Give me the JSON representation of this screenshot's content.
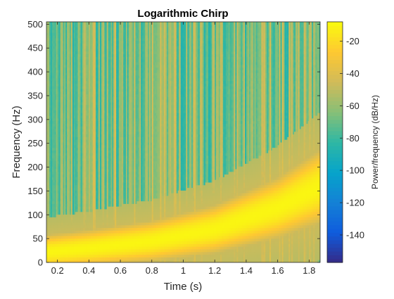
{
  "chart_data": {
    "type": "heatmap",
    "title": "Logarithmic Chirp",
    "xlabel": "Time (s)",
    "ylabel": "Frequency (Hz)",
    "xlim": [
      0.13,
      1.87
    ],
    "ylim": [
      0,
      505
    ],
    "x_ticks": [
      0.2,
      0.4,
      0.6,
      0.8,
      1,
      1.2,
      1.4,
      1.6,
      1.8
    ],
    "x_tick_labels": [
      "0.2",
      "0.4",
      "0.6",
      "0.8",
      "1",
      "1.2",
      "1.4",
      "1.6",
      "1.8"
    ],
    "y_ticks": [
      0,
      50,
      100,
      150,
      200,
      250,
      300,
      350,
      400,
      450,
      500
    ],
    "y_tick_labels": [
      "0",
      "50",
      "100",
      "150",
      "200",
      "250",
      "300",
      "350",
      "400",
      "450",
      "500"
    ],
    "colorbar": {
      "label": "Power/frequency (dB/Hz)",
      "range": [
        -157,
        -8
      ],
      "ticks": [
        -20,
        -40,
        -60,
        -80,
        -100,
        -120,
        -140
      ],
      "tick_labels": [
        "-20",
        "-40",
        "-60",
        "-80",
        "-100",
        "-120",
        "-140"
      ],
      "colormap": "parula",
      "colors": [
        "#352a87",
        "#0f5cdd",
        "#1481d6",
        "#06a4ca",
        "#2eb7a4",
        "#87bf77",
        "#d1bb59",
        "#fec832",
        "#f9fb0e"
      ]
    },
    "chirp_ridge": {
      "time": [
        0.13,
        0.4,
        0.8,
        1.2,
        1.6,
        1.87
      ],
      "frequency": [
        22,
        30,
        45,
        70,
        115,
        160
      ],
      "peak_power": -10
    },
    "background_power_range": [
      -85,
      -40
    ],
    "grid": false
  }
}
